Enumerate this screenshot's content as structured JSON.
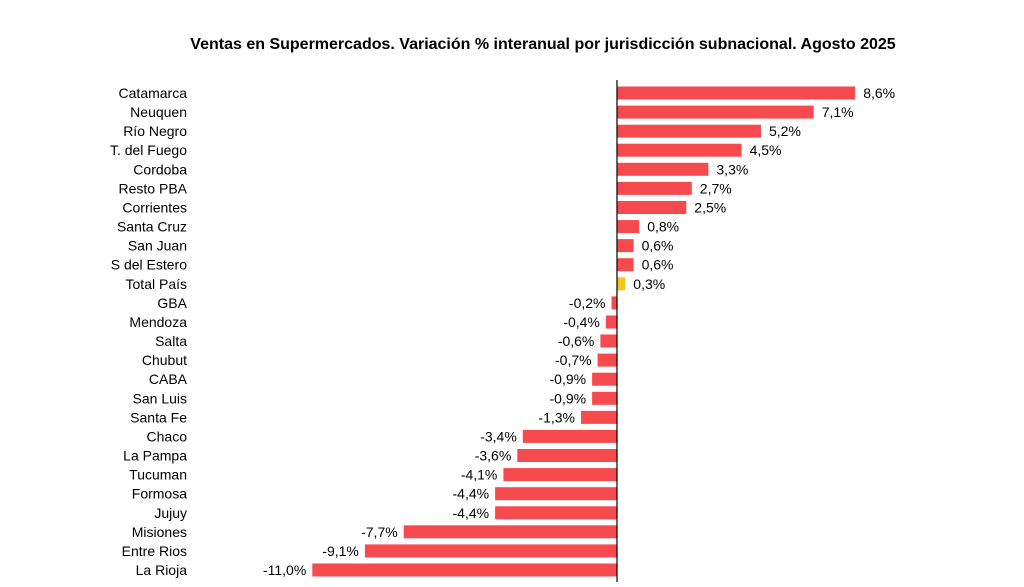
{
  "chart_data": {
    "type": "bar",
    "orientation": "horizontal",
    "title": "Ventas en Supermercados. Variación % interanual por jurisdicción subnacional. Agosto 2025",
    "xlabel": "",
    "ylabel": "",
    "categories": [
      "Catamarca",
      "Neuquen",
      "Río Negro",
      "T. del Fuego",
      "Cordoba",
      "Resto PBA",
      "Corrientes",
      "Santa Cruz",
      "San Juan",
      "S del Estero",
      "Total País",
      "GBA",
      "Mendoza",
      "Salta",
      "Chubut",
      "CABA",
      "San Luis",
      "Santa Fe",
      "Chaco",
      "La Pampa",
      "Tucuman",
      "Formosa",
      "Jujuy",
      "Misiones",
      "Entre Rios",
      "La Rioja"
    ],
    "values": [
      8.6,
      7.1,
      5.2,
      4.5,
      3.3,
      2.7,
      2.5,
      0.8,
      0.6,
      0.6,
      0.3,
      -0.2,
      -0.4,
      -0.6,
      -0.7,
      -0.9,
      -0.9,
      -1.3,
      -3.4,
      -3.6,
      -4.1,
      -4.4,
      -4.4,
      -7.7,
      -9.1,
      -11.0
    ],
    "value_labels": [
      "8,6%",
      "7,1%",
      "5,2%",
      "4,5%",
      "3,3%",
      "2,7%",
      "2,5%",
      "0,8%",
      "0,6%",
      "0,6%",
      "0,3%",
      "-0,2%",
      "-0,4%",
      "-0,6%",
      "-0,7%",
      "-0,9%",
      "-0,9%",
      "-1,3%",
      "-3,4%",
      "-3,6%",
      "-4,1%",
      "-4,4%",
      "-4,4%",
      "-7,7%",
      "-9,1%",
      "-11,0%"
    ],
    "xlim": [
      -11.0,
      8.6
    ],
    "grid": false,
    "legend": "none",
    "colors": {
      "bar": "#f74a4f",
      "highlight": "#f5c518",
      "axis": "#000000"
    },
    "highlight_category": "Total País"
  }
}
